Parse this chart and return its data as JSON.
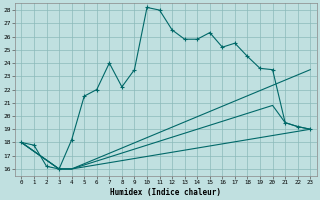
{
  "xlabel": "Humidex (Indice chaleur)",
  "background_color": "#c0e0e0",
  "grid_color": "#8bbaba",
  "line_color": "#006868",
  "xlim": [
    -0.5,
    23.5
  ],
  "ylim": [
    15.5,
    28.5
  ],
  "yticks": [
    16,
    17,
    18,
    19,
    20,
    21,
    22,
    23,
    24,
    25,
    26,
    27,
    28
  ],
  "xticks": [
    0,
    1,
    2,
    3,
    4,
    5,
    6,
    7,
    8,
    9,
    10,
    11,
    12,
    13,
    14,
    15,
    16,
    17,
    18,
    19,
    20,
    21,
    22,
    23
  ],
  "line1_x": [
    0,
    1,
    2,
    3,
    4,
    5,
    6,
    7,
    8,
    9,
    10,
    11,
    12,
    13,
    14,
    15,
    16,
    17,
    18,
    19,
    20,
    21,
    22,
    23
  ],
  "line1_y": [
    18.0,
    17.8,
    16.2,
    16.0,
    18.2,
    21.5,
    22.0,
    24.0,
    22.2,
    23.5,
    28.2,
    28.0,
    26.5,
    25.8,
    25.8,
    26.3,
    25.2,
    25.5,
    24.5,
    23.6,
    23.5,
    19.5,
    19.2,
    19.0
  ],
  "line2_x": [
    0,
    3,
    4,
    23
  ],
  "line2_y": [
    18.0,
    16.0,
    16.0,
    23.5
  ],
  "line3_x": [
    0,
    3,
    4,
    20,
    21,
    22,
    23
  ],
  "line3_y": [
    18.0,
    16.0,
    16.0,
    20.8,
    19.5,
    19.2,
    19.0
  ],
  "line4_x": [
    0,
    3,
    4,
    23
  ],
  "line4_y": [
    18.0,
    16.0,
    16.0,
    19.0
  ]
}
